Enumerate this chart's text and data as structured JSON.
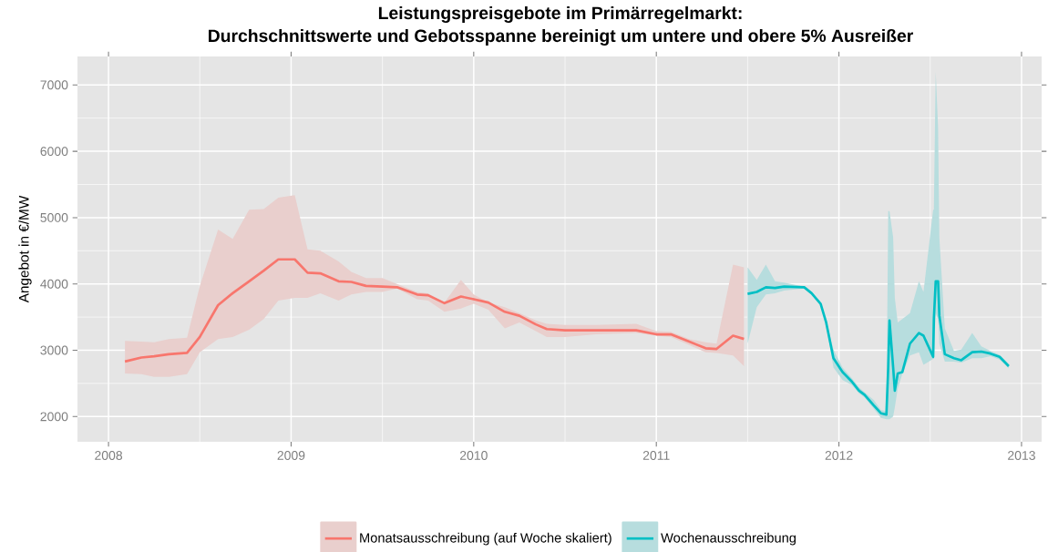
{
  "chart_data": {
    "type": "line",
    "title": "Leistungspreisgebote im Primärregelmarkt:",
    "subtitle": "Durchschnittswerte und Gebotsspanne bereinigt um untere und obere 5% Ausreißer",
    "ylabel": "Angebot in €/MW",
    "xlim": [
      2007.83,
      2013.11
    ],
    "xticks": [
      2008,
      2009,
      2010,
      2011,
      2012,
      2013
    ],
    "ylim": [
      1620,
      7430
    ],
    "yticks": [
      2000,
      3000,
      4000,
      5000,
      6000,
      7000
    ],
    "grid": true,
    "legend": "bottom",
    "series": [
      {
        "name": "Monatsausschreibung (auf Woche skaliert)",
        "color": "#f8766d",
        "x": [
          2008.09,
          2008.18,
          2008.25,
          2008.33,
          2008.43,
          2008.5,
          2008.6,
          2008.68,
          2008.77,
          2008.85,
          2008.93,
          2009.02,
          2009.09,
          2009.16,
          2009.26,
          2009.33,
          2009.41,
          2009.5,
          2009.58,
          2009.69,
          2009.75,
          2009.84,
          2009.93,
          2010.0,
          2010.08,
          2010.17,
          2010.25,
          2010.34,
          2010.4,
          2010.5,
          2010.67,
          2010.89,
          2011.0,
          2011.08,
          2011.18,
          2011.27,
          2011.33,
          2011.42,
          2011.48
        ],
        "values": [
          2830,
          2890,
          2910,
          2940,
          2960,
          3200,
          3680,
          3860,
          4040,
          4200,
          4370,
          4370,
          4170,
          4160,
          4040,
          4030,
          3970,
          3960,
          3950,
          3840,
          3830,
          3710,
          3810,
          3770,
          3720,
          3580,
          3520,
          3390,
          3320,
          3300,
          3300,
          3300,
          3240,
          3240,
          3130,
          3030,
          3020,
          3220,
          3170
        ],
        "lower": [
          2650,
          2640,
          2600,
          2600,
          2640,
          2970,
          3170,
          3200,
          3310,
          3470,
          3750,
          3790,
          3790,
          3860,
          3750,
          3840,
          3880,
          3880,
          3930,
          3770,
          3750,
          3580,
          3630,
          3700,
          3610,
          3330,
          3420,
          3290,
          3200,
          3200,
          3240,
          3260,
          3220,
          3200,
          3080,
          2970,
          2960,
          2920,
          2760
        ],
        "upper": [
          3140,
          3130,
          3120,
          3170,
          3190,
          3970,
          4820,
          4680,
          5120,
          5130,
          5300,
          5340,
          4520,
          4500,
          4340,
          4180,
          4090,
          4090,
          4000,
          3880,
          3860,
          3720,
          4060,
          3840,
          3720,
          3650,
          3560,
          3450,
          3400,
          3380,
          3380,
          3400,
          3290,
          3280,
          3170,
          3120,
          3100,
          4290,
          4250
        ]
      },
      {
        "name": "Wochenausschreibung",
        "color": "#00bfc4",
        "x": [
          2011.5,
          2011.55,
          2011.6,
          2011.65,
          2011.7,
          2011.81,
          2011.85,
          2011.9,
          2011.93,
          2011.97,
          2012.02,
          2012.07,
          2012.11,
          2012.14,
          2012.19,
          2012.23,
          2012.26,
          2012.27,
          2012.277,
          2012.297,
          2012.306,
          2012.322,
          2012.347,
          2012.389,
          2012.438,
          2012.463,
          2012.516,
          2012.52,
          2012.53,
          2012.543,
          2012.55,
          2012.58,
          2012.63,
          2012.67,
          2012.73,
          2012.78,
          2012.83,
          2012.88,
          2012.93
        ],
        "values": [
          3850,
          3880,
          3950,
          3940,
          3960,
          3950,
          3860,
          3700,
          3420,
          2880,
          2670,
          2530,
          2390,
          2330,
          2170,
          2050,
          2030,
          2740,
          3450,
          2740,
          2390,
          2650,
          2670,
          3100,
          3260,
          3220,
          2900,
          3470,
          4040,
          4040,
          3520,
          2940,
          2880,
          2850,
          2970,
          2980,
          2950,
          2900,
          2760
        ],
        "lower": [
          3100,
          3650,
          3840,
          3860,
          3900,
          3930,
          3840,
          3680,
          3400,
          2740,
          2550,
          2480,
          2350,
          2290,
          2120,
          1980,
          1960,
          1960,
          1960,
          2000,
          2140,
          2420,
          2640,
          2920,
          2970,
          2780,
          2870,
          2870,
          3560,
          3470,
          3100,
          2830,
          2830,
          2810,
          2880,
          2880,
          2910,
          2860,
          2730
        ],
        "upper": [
          4250,
          4060,
          4290,
          4040,
          4020,
          3960,
          3880,
          3720,
          3450,
          3010,
          2740,
          2580,
          2440,
          2370,
          2250,
          2100,
          2080,
          5100,
          5100,
          4700,
          3790,
          3420,
          3470,
          3560,
          4040,
          3880,
          5120,
          5120,
          7200,
          6350,
          4700,
          3330,
          2990,
          3010,
          3260,
          3060,
          2990,
          2930,
          2790
        ]
      }
    ]
  }
}
